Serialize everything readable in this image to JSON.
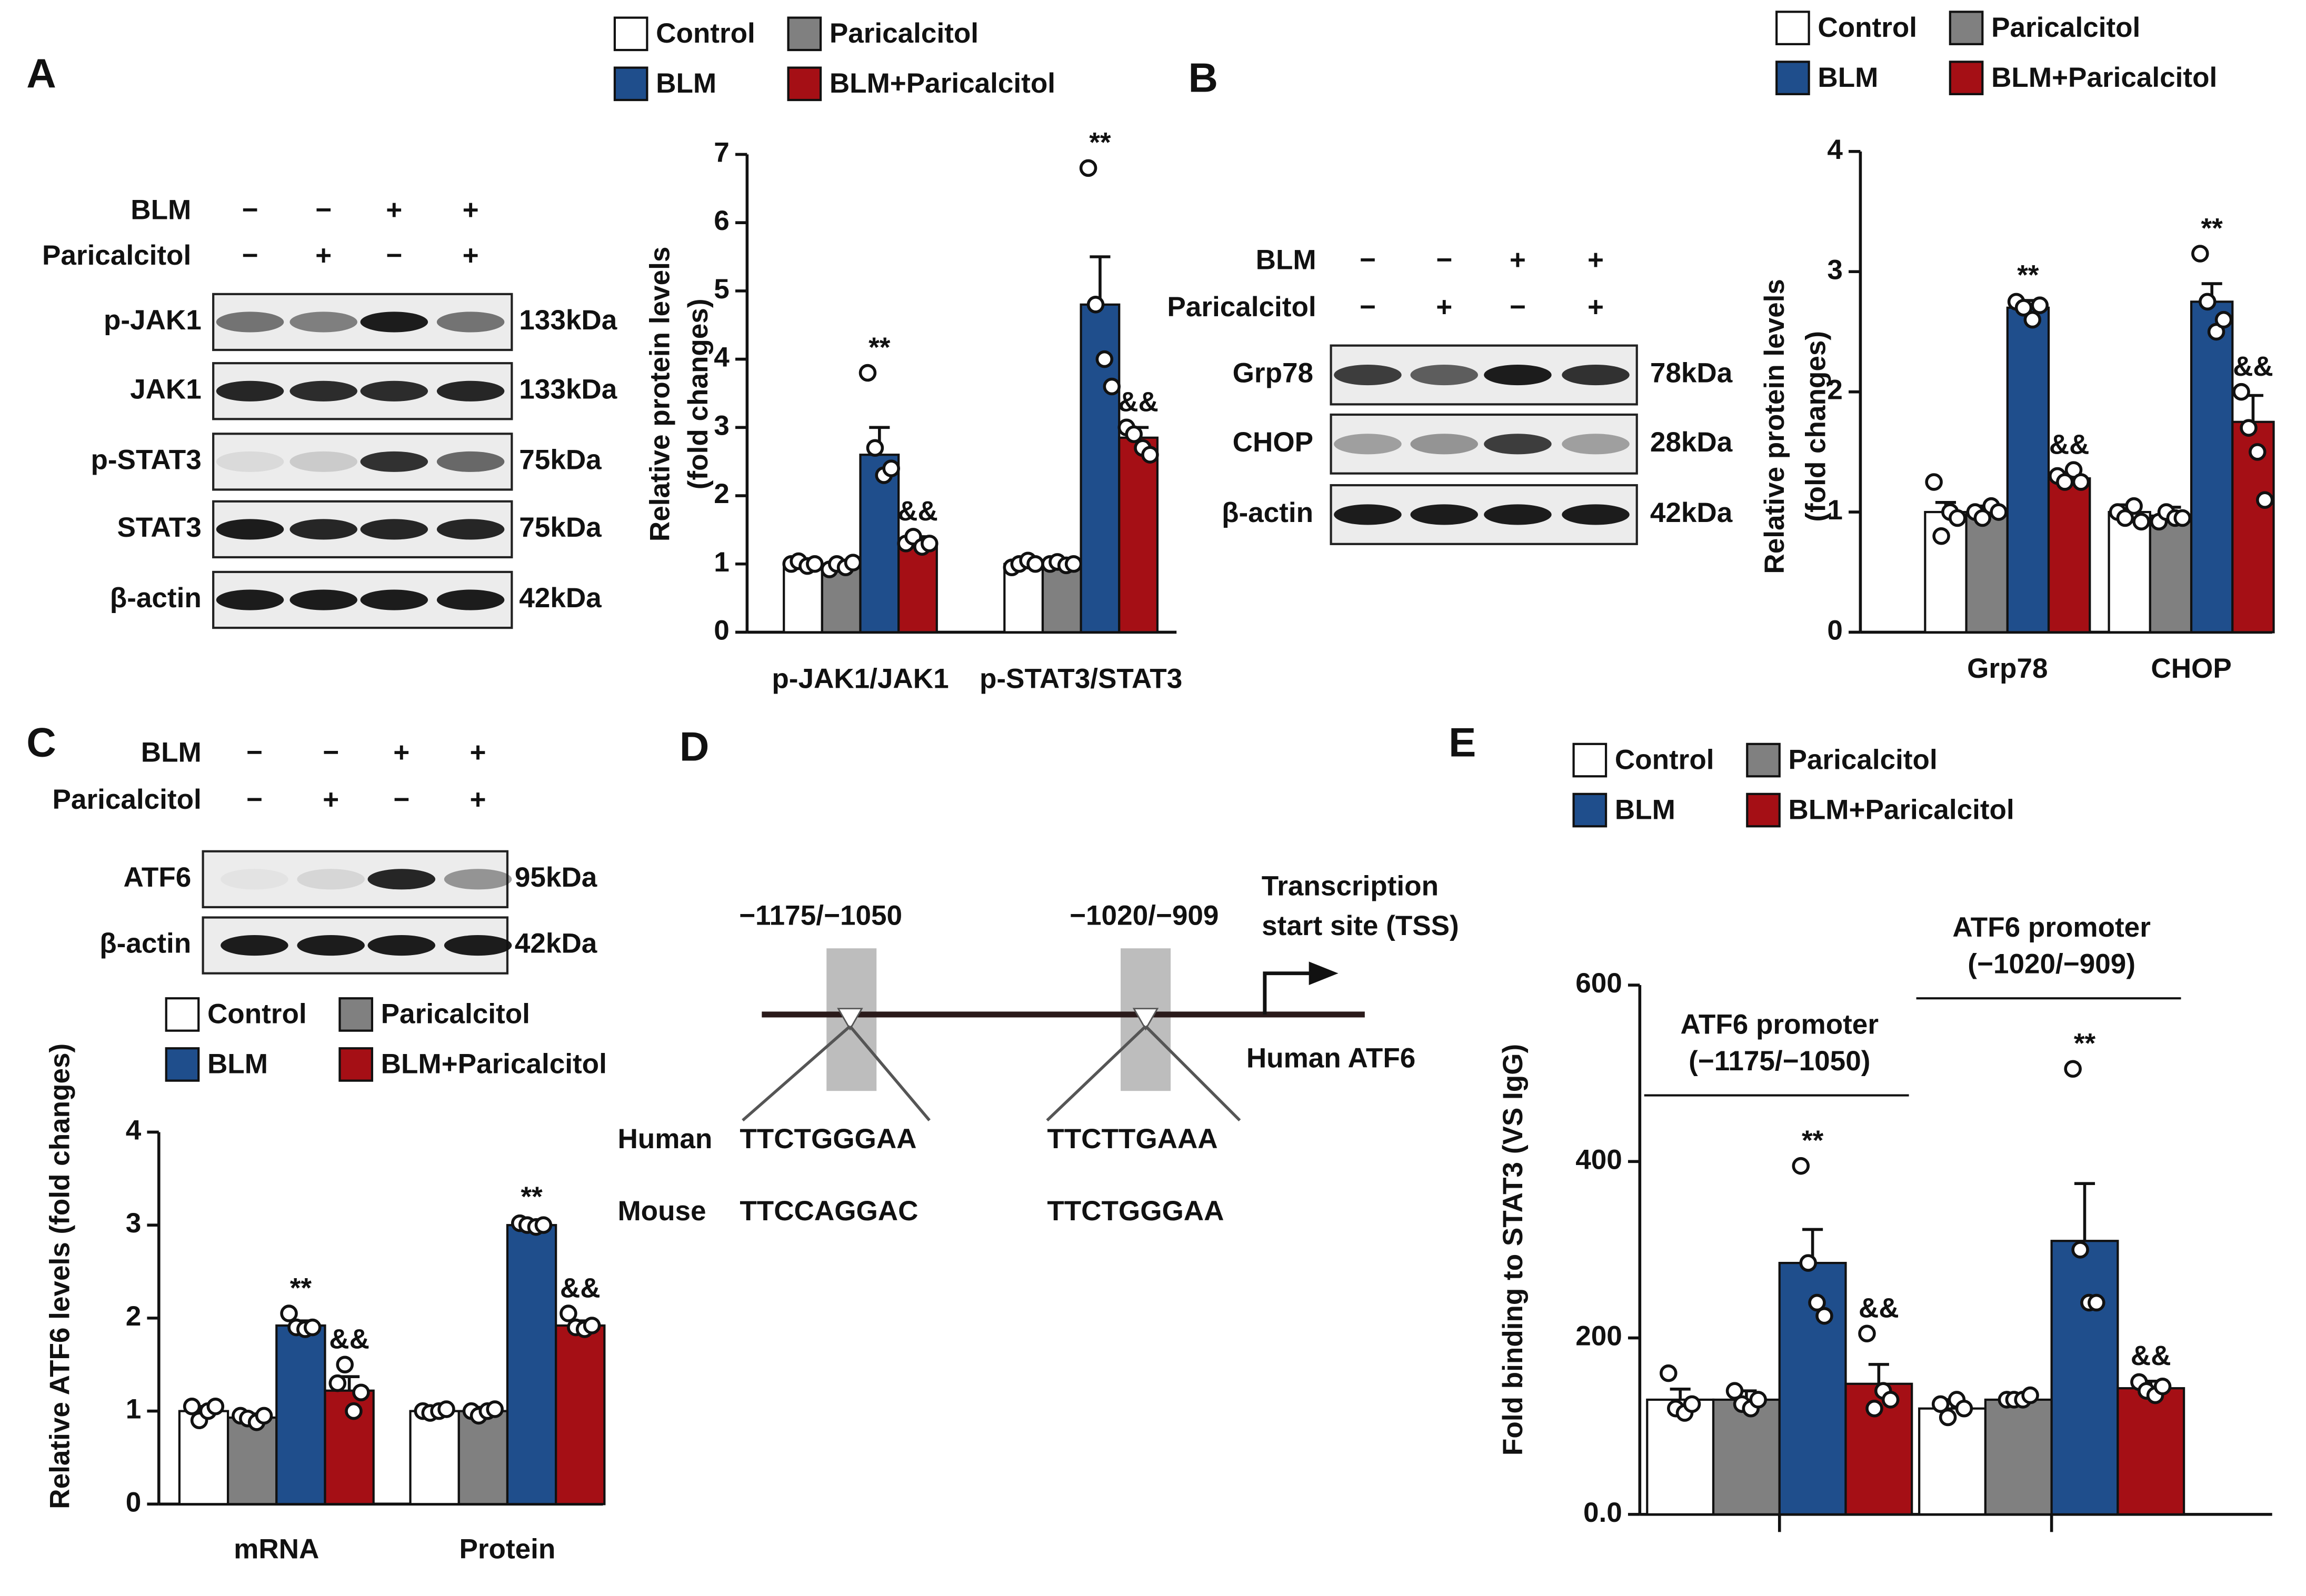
{
  "panels": [
    "A",
    "B",
    "C",
    "D",
    "E"
  ],
  "chart_data": [
    {
      "type": "bar",
      "ylabel": [
        "Relative protein levels",
        "(fold changes)"
      ],
      "categories": [
        "p-JAK1/JAK1",
        "p-STAT3/STAT3"
      ],
      "ylim": [
        0,
        7
      ],
      "yticks": [
        0,
        1,
        2,
        3,
        4,
        5,
        6,
        7
      ],
      "series": [
        {
          "name": "Control",
          "color": "#ffffff",
          "values": [
            1.0,
            1.0
          ],
          "errors": [
            0.03,
            0.05
          ],
          "points": [
            [
              1.0,
              1.04,
              0.97,
              1.0
            ],
            [
              0.95,
              1.0,
              1.05,
              1.0
            ]
          ]
        },
        {
          "name": "Paricalcitol",
          "color": "#808080",
          "values": [
            0.97,
            1.0
          ],
          "errors": [
            0.05,
            0.04
          ],
          "points": [
            [
              0.92,
              1.0,
              0.95,
              1.02
            ],
            [
              1.0,
              1.03,
              0.98,
              1.0
            ]
          ]
        },
        {
          "name": "BLM",
          "color": "#1f4e8c",
          "values": [
            2.6,
            4.8
          ],
          "errors": [
            0.4,
            0.7
          ],
          "points": [
            [
              3.8,
              2.7,
              2.3,
              2.4
            ],
            [
              6.8,
              4.8,
              4.0,
              3.6
            ]
          ],
          "significance": [
            "**",
            "**"
          ]
        },
        {
          "name": "BLM+Paricalcitol",
          "color": "#a50f15",
          "values": [
            1.3,
            2.85
          ],
          "errors": [
            0.1,
            0.15
          ],
          "points": [
            [
              1.3,
              1.4,
              1.25,
              1.3
            ],
            [
              3.0,
              2.9,
              2.7,
              2.6
            ]
          ],
          "significance": [
            "&&",
            "&&"
          ]
        }
      ]
    },
    {
      "type": "bar",
      "ylabel": [
        "Relative protein levels",
        "(fold changes)"
      ],
      "categories": [
        "Grp78",
        "CHOP"
      ],
      "ylim": [
        0,
        4
      ],
      "yticks": [
        0,
        1,
        2,
        3,
        4
      ],
      "series": [
        {
          "name": "Control",
          "color": "#ffffff",
          "values": [
            1.0,
            1.0
          ],
          "errors": [
            0.08,
            0.06
          ],
          "points": [
            [
              1.25,
              0.8,
              1.0,
              0.95
            ],
            [
              1.0,
              0.95,
              1.05,
              0.92
            ]
          ]
        },
        {
          "name": "Paricalcitol",
          "color": "#808080",
          "values": [
            1.0,
            0.97
          ],
          "errors": [
            0.05,
            0.07
          ],
          "points": [
            [
              1.0,
              0.95,
              1.05,
              1.0
            ],
            [
              0.92,
              1.0,
              0.95,
              0.95
            ]
          ]
        },
        {
          "name": "BLM",
          "color": "#1f4e8c",
          "values": [
            2.7,
            2.75
          ],
          "errors": [
            0.06,
            0.15
          ],
          "points": [
            [
              2.75,
              2.7,
              2.6,
              2.72
            ],
            [
              3.15,
              2.75,
              2.5,
              2.6
            ]
          ],
          "significance": [
            "**",
            "**"
          ]
        },
        {
          "name": "BLM+Paricalcitol",
          "color": "#a50f15",
          "values": [
            1.28,
            1.75
          ],
          "errors": [
            0.05,
            0.22
          ],
          "points": [
            [
              1.3,
              1.25,
              1.35,
              1.25
            ],
            [
              2.0,
              1.7,
              1.5,
              1.1
            ]
          ],
          "significance": [
            "&&",
            "&&"
          ]
        }
      ]
    },
    {
      "type": "bar",
      "ylabel": [
        "Relative ATF6 levels (fold changes)"
      ],
      "categories": [
        "mRNA",
        "Protein"
      ],
      "ylim": [
        0,
        4
      ],
      "yticks": [
        0,
        1,
        2,
        3,
        4
      ],
      "series": [
        {
          "name": "Control",
          "color": "#ffffff",
          "values": [
            1.0,
            1.0
          ],
          "errors": [
            0.05,
            0.03
          ],
          "points": [
            [
              1.05,
              0.9,
              1.0,
              1.05
            ],
            [
              1.0,
              0.98,
              1.0,
              1.02
            ]
          ]
        },
        {
          "name": "Paricalcitol",
          "color": "#808080",
          "values": [
            0.93,
            1.0
          ],
          "errors": [
            0.04,
            0.04
          ],
          "points": [
            [
              0.95,
              0.92,
              0.88,
              0.95
            ],
            [
              1.0,
              0.95,
              1.0,
              1.02
            ]
          ]
        },
        {
          "name": "BLM",
          "color": "#1f4e8c",
          "values": [
            1.92,
            3.0
          ],
          "errors": [
            0.05,
            0.03
          ],
          "points": [
            [
              2.05,
              1.9,
              1.88,
              1.9
            ],
            [
              3.02,
              3.0,
              2.98,
              3.0
            ]
          ],
          "significance": [
            "**",
            "**"
          ]
        },
        {
          "name": "BLM+Paricalcitol",
          "color": "#a50f15",
          "values": [
            1.22,
            1.92
          ],
          "errors": [
            0.15,
            0.05
          ],
          "points": [
            [
              1.3,
              1.5,
              1.0,
              1.2
            ],
            [
              2.05,
              1.9,
              1.88,
              1.92
            ]
          ],
          "significance": [
            "&&",
            "&&"
          ]
        }
      ]
    },
    {
      "type": "bar",
      "ylabel": [
        "Fold binding to STAT3 (VS IgG)"
      ],
      "categories": [
        [
          "ATF6 promoter",
          "(−1175/−1050)"
        ],
        [
          "ATF6 promoter",
          "(−1020/−909)"
        ]
      ],
      "category_position": "top",
      "ylim": [
        0,
        600
      ],
      "yticks": [
        {
          "value": 0,
          "label": "0.0"
        },
        200,
        400,
        600
      ],
      "series": [
        {
          "name": "Control",
          "color": "#ffffff",
          "values": [
            130,
            120
          ],
          "errors": [
            12,
            10
          ],
          "points": [
            [
              160,
              120,
              115,
              125
            ],
            [
              125,
              110,
              130,
              120
            ]
          ]
        },
        {
          "name": "Paricalcitol",
          "color": "#808080",
          "values": [
            130,
            130
          ],
          "errors": [
            10,
            5
          ],
          "points": [
            [
              140,
              125,
              120,
              130
            ],
            [
              130,
              130,
              130,
              135
            ]
          ]
        },
        {
          "name": "BLM",
          "color": "#1f4e8c",
          "values": [
            285,
            310
          ],
          "errors": [
            38,
            65
          ],
          "points": [
            [
              395,
              285,
              240,
              225
            ],
            [
              505,
              300,
              240,
              240
            ]
          ],
          "significance": [
            "**",
            "**"
          ]
        },
        {
          "name": "BLM+Paricalcitol",
          "color": "#a50f15",
          "values": [
            148,
            143
          ],
          "errors": [
            22,
            8
          ],
          "points": [
            [
              205,
              120,
              140,
              130
            ],
            [
              150,
              140,
              135,
              145
            ]
          ],
          "significance": [
            "&&",
            "&&"
          ]
        }
      ]
    }
  ],
  "blots": [
    {
      "conditions": [
        {
          "name": "BLM",
          "signs": [
            "−",
            "−",
            "+",
            "+"
          ]
        },
        {
          "name": "Paricalcitol",
          "signs": [
            "−",
            "+",
            "−",
            "+"
          ]
        }
      ],
      "bands": [
        {
          "name": "p-JAK1",
          "size": "133kDa"
        },
        {
          "name": "JAK1",
          "size": "133kDa"
        },
        {
          "name": "p-STAT3",
          "size": "75kDa"
        },
        {
          "name": "STAT3",
          "size": "75kDa"
        },
        {
          "name": "β-actin",
          "size": "42kDa"
        }
      ]
    },
    {
      "conditions": [
        {
          "name": "BLM",
          "signs": [
            "−",
            "−",
            "+",
            "+"
          ]
        },
        {
          "name": "Paricalcitol",
          "signs": [
            "−",
            "+",
            "−",
            "+"
          ]
        }
      ],
      "bands": [
        {
          "name": "Grp78",
          "size": "78kDa"
        },
        {
          "name": "CHOP",
          "size": "28kDa"
        },
        {
          "name": "β-actin",
          "size": "42kDa"
        }
      ]
    },
    {
      "conditions": [
        {
          "name": "BLM",
          "signs": [
            "−",
            "−",
            "+",
            "+"
          ]
        },
        {
          "name": "Paricalcitol",
          "signs": [
            "−",
            "+",
            "−",
            "+"
          ]
        }
      ],
      "bands": [
        {
          "name": "ATF6",
          "size": "95kDa"
        },
        {
          "name": "β-actin",
          "size": "42kDa"
        }
      ]
    }
  ],
  "diagram": {
    "sites": [
      "−1175/−1050",
      "−1020/−909"
    ],
    "tss": [
      "Transcription",
      "start site (TSS)"
    ],
    "gene": "Human ATF6",
    "species": [
      "Human",
      "Mouse"
    ],
    "sequences": [
      [
        "TTCTGGGAA",
        "TTCTTGAAA"
      ],
      [
        "TTCCAGGAC",
        "TTCTGGGAA"
      ]
    ]
  }
}
